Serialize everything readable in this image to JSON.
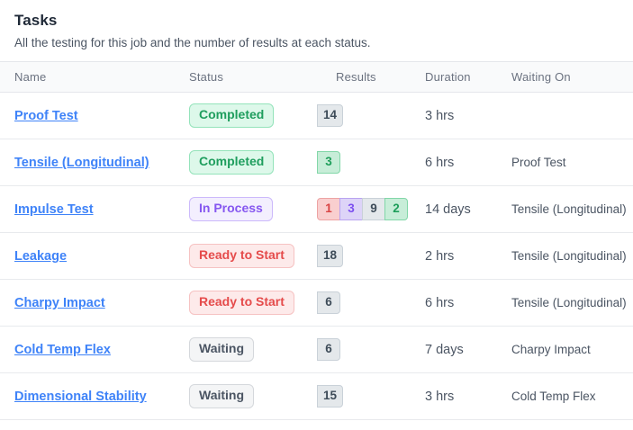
{
  "page": {
    "title": "Tasks",
    "subtitle": "All the testing for this job and the number of results at each status."
  },
  "table": {
    "columns": [
      "Name",
      "Status",
      "Results",
      "Duration",
      "Waiting On"
    ],
    "rows": [
      {
        "name": "Proof Test",
        "status": {
          "label": "Completed",
          "variant": "green"
        },
        "results": [
          {
            "count": "14",
            "variant": "gray"
          }
        ],
        "duration": "3 hrs",
        "waiting_on": ""
      },
      {
        "name": "Tensile (Longitudinal)",
        "status": {
          "label": "Completed",
          "variant": "green"
        },
        "results": [
          {
            "count": "3",
            "variant": "green"
          }
        ],
        "duration": "6 hrs",
        "waiting_on": "Proof Test"
      },
      {
        "name": "Impulse Test",
        "status": {
          "label": "In Process",
          "variant": "purple"
        },
        "results": [
          {
            "count": "1",
            "variant": "red"
          },
          {
            "count": "3",
            "variant": "purple"
          },
          {
            "count": "9",
            "variant": "gray"
          },
          {
            "count": "2",
            "variant": "green"
          }
        ],
        "duration": "14 days",
        "waiting_on": "Tensile (Longitudinal)"
      },
      {
        "name": "Leakage",
        "status": {
          "label": "Ready to Start",
          "variant": "red"
        },
        "results": [
          {
            "count": "18",
            "variant": "gray"
          }
        ],
        "duration": "2 hrs",
        "waiting_on": "Tensile (Longitudinal)"
      },
      {
        "name": "Charpy Impact",
        "status": {
          "label": "Ready to Start",
          "variant": "red"
        },
        "results": [
          {
            "count": "6",
            "variant": "gray"
          }
        ],
        "duration": "6 hrs",
        "waiting_on": "Tensile (Longitudinal)"
      },
      {
        "name": "Cold Temp Flex",
        "status": {
          "label": "Waiting",
          "variant": "gray"
        },
        "results": [
          {
            "count": "6",
            "variant": "gray"
          }
        ],
        "duration": "7 days",
        "waiting_on": "Charpy Impact"
      },
      {
        "name": "Dimensional Stability",
        "status": {
          "label": "Waiting",
          "variant": "gray"
        },
        "results": [
          {
            "count": "15",
            "variant": "gray"
          }
        ],
        "duration": "3 hrs",
        "waiting_on": "Cold Temp Flex"
      }
    ]
  },
  "colors": {
    "link_blue": "#3f83f8",
    "status_green_text": "#1f9e5e",
    "status_purple_text": "#8657f0",
    "status_red_text": "#e54b4b",
    "status_gray_text": "#4b5563",
    "header_bg": "#f9fafb",
    "row_border": "#e8eaed"
  }
}
